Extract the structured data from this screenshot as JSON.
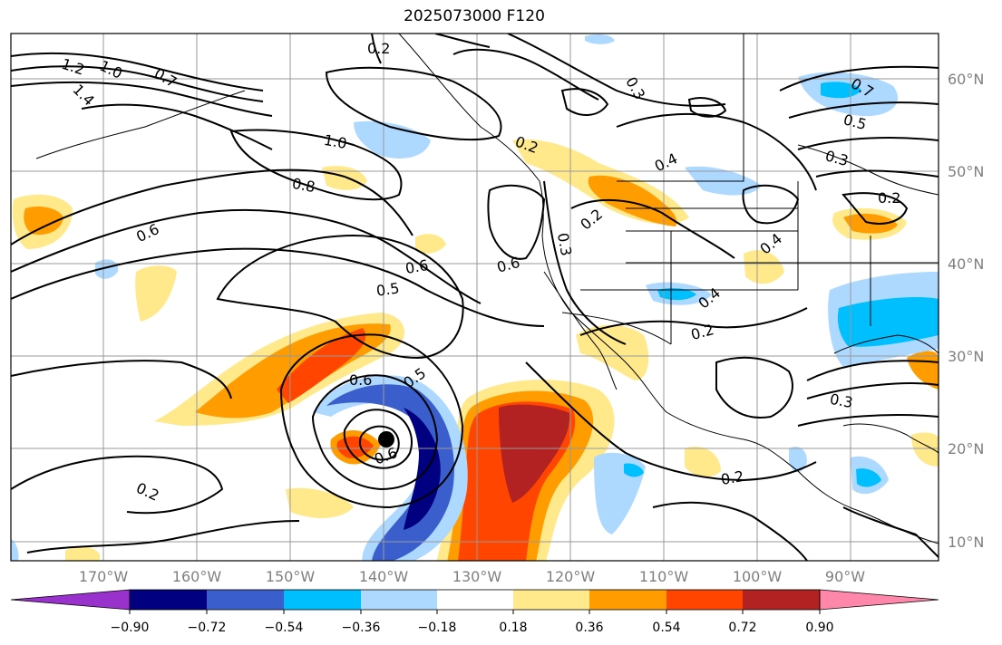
{
  "title": "2025073000 F120",
  "axes": {
    "lon_labels": [
      "170°W",
      "160°W",
      "150°W",
      "140°W",
      "130°W",
      "120°W",
      "110°W",
      "100°W",
      "90°W"
    ],
    "lat_labels": [
      "60°N",
      "50°N",
      "40°N",
      "30°N",
      "20°N",
      "10°N"
    ],
    "lon_range": [
      -178,
      -79
    ],
    "lat_range": [
      8,
      65
    ]
  },
  "colorbar": {
    "ticks": [
      "−0.90",
      "−0.72",
      "−0.54",
      "−0.36",
      "−0.18",
      "0.18",
      "0.36",
      "0.54",
      "0.72",
      "0.90"
    ],
    "colors": [
      "#9932cc",
      "#000080",
      "#3a5fcd",
      "#00bfff",
      "#add8ff",
      "#ffffff",
      "#ffe98a",
      "#ff9c00",
      "#ff4500",
      "#b22222",
      "#ff88aa"
    ]
  },
  "contour_labels": [
    "0.2",
    "1.2",
    "1.0",
    "0.7",
    "1.4",
    "1.0",
    "0.8",
    "0.6",
    "0.6",
    "0.5",
    "0.6",
    "0.5",
    "0.6",
    "0.2",
    "0.3",
    "0.2",
    "0.4",
    "0.3",
    "0.5",
    "0.7",
    "0.3",
    "0.2",
    "0.4",
    "0.4",
    "0.2",
    "0.3",
    "0.2",
    "0.2",
    "0.6"
  ],
  "center_marker": "low-center"
}
